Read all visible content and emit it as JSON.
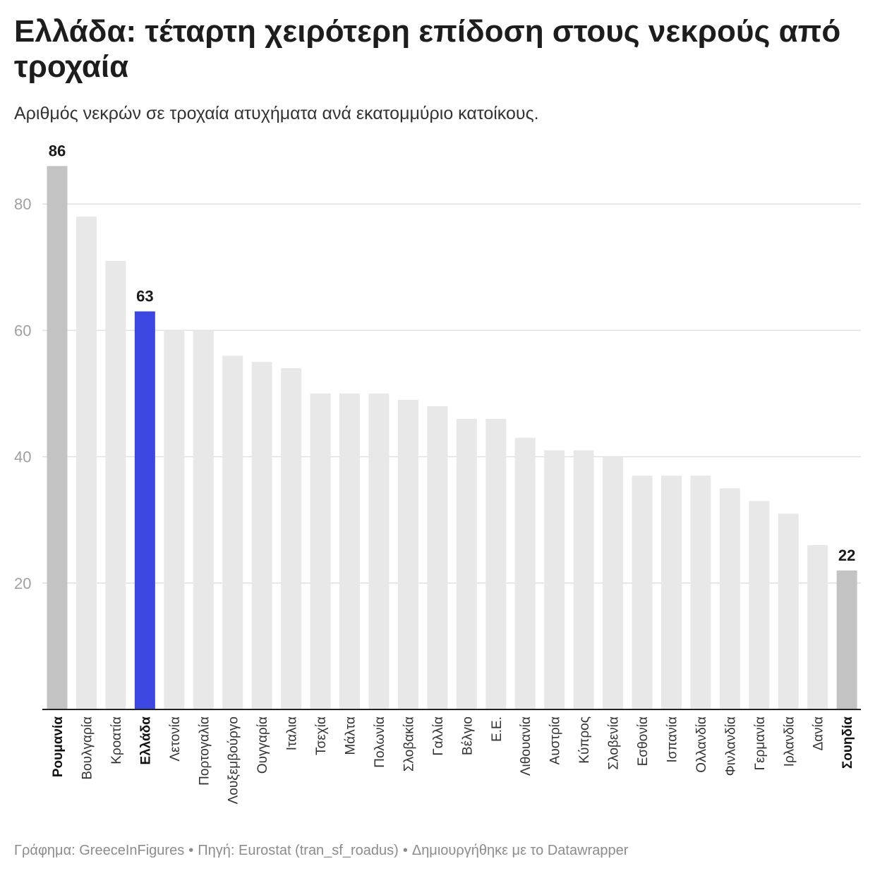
{
  "header": {
    "title": "Ελλάδα: τέταρτη χειρότερη επίδοση στους νεκρούς από τροχαία",
    "subtitle": "Αριθμός νεκρών σε τροχαία ατυχήματα ανά εκατομμύριο κατοίκους."
  },
  "footer": {
    "graphic": "Γράφημα: GreeceInFigures",
    "source": "Πηγή: Eurostat (tran_sf_roadus)",
    "tool": "Δημιουργήθηκε με το Datawrapper",
    "separator": "•"
  },
  "colors": {
    "default_bar": "#e8e8e8",
    "extreme_bar": "#c3c3c3",
    "greece_bar": "#3b47e0",
    "gridline": "#e0e0e0",
    "axis_line": "#222222",
    "tick_label": "#a0a0a0",
    "category_label": "#333333",
    "value_label": "#1a1a1a"
  },
  "chart_data": {
    "type": "bar",
    "title": "Ελλάδα: τέταρτη χειρότερη επίδοση στους νεκρούς από τροχαία",
    "subtitle": "Αριθμός νεκρών σε τροχαία ατυχήματα ανά εκατομμύριο κατοίκους.",
    "xlabel": "",
    "ylabel": "",
    "ylim": [
      0,
      90
    ],
    "yticks": [
      20,
      40,
      60,
      80
    ],
    "grid": true,
    "categories": [
      "Ρουμανία",
      "Βουλγαρία",
      "Κροατία",
      "Ελλάδα",
      "Λετονία",
      "Πορτογαλία",
      "Λουξεμβούργο",
      "Ουγγαρία",
      "Ιταλια",
      "Τσεχία",
      "Μάλτα",
      "Πολωνία",
      "Σλοβακία",
      "Γαλλία",
      "Βέλγιο",
      "Ε.Ε.",
      "Λιθουανία",
      "Αυστρία",
      "Κύπρος",
      "Σλοβενία",
      "Εσθονία",
      "Ισπανία",
      "Ολλανδία",
      "Φινλανδία",
      "Γερμανία",
      "Ιρλανδία",
      "Δανία",
      "Σουηδία"
    ],
    "values": [
      86,
      78,
      71,
      63,
      60,
      60,
      56,
      55,
      54,
      50,
      50,
      50,
      49,
      48,
      46,
      46,
      43,
      41,
      41,
      40,
      37,
      37,
      37,
      35,
      33,
      31,
      26,
      22
    ],
    "highlight": {
      "Ρουμανία": "extreme",
      "Ελλάδα": "greece",
      "Σουηδία": "extreme"
    },
    "bold_categories": [
      "Ρουμανία",
      "Ελλάδα",
      "Σουηδία"
    ],
    "value_labels": {
      "Ρουμανία": "86",
      "Ελλάδα": "63",
      "Σουηδία": "22"
    }
  }
}
